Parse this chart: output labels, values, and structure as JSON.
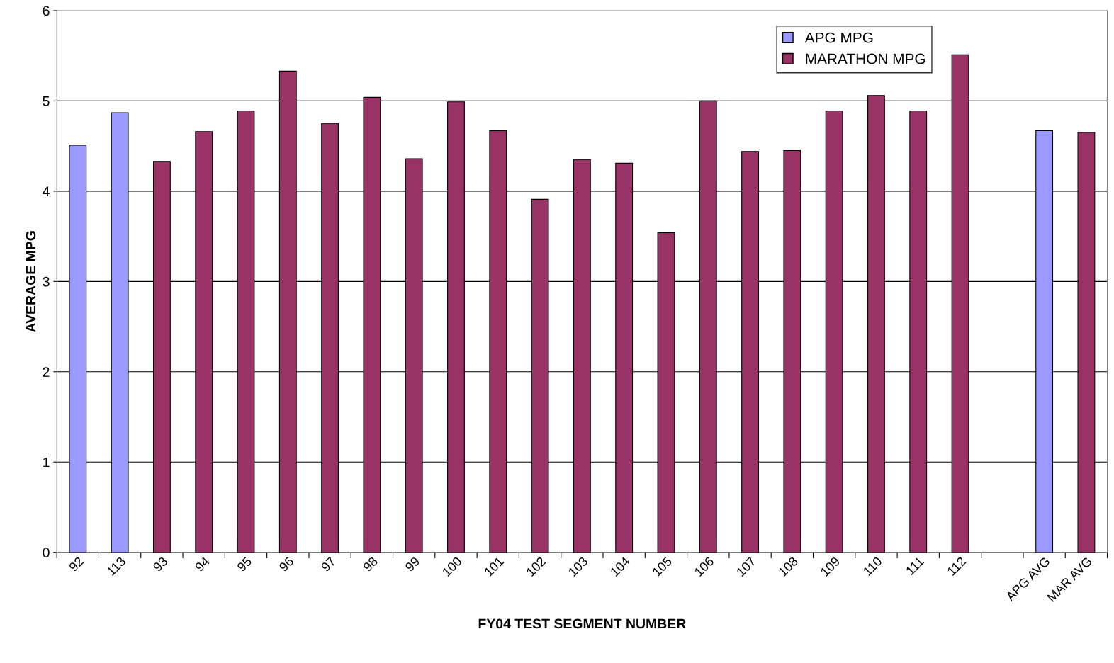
{
  "chart_data": {
    "type": "bar",
    "xlabel": "FY04 TEST SEGMENT NUMBER",
    "ylabel": "AVERAGE MPG",
    "categories": [
      "92",
      "113",
      "93",
      "94",
      "95",
      "96",
      "97",
      "98",
      "99",
      "100",
      "101",
      "102",
      "103",
      "104",
      "105",
      "106",
      "107",
      "108",
      "109",
      "110",
      "111",
      "112",
      null,
      "APG AVG",
      "MAR AVG"
    ],
    "series": [
      {
        "name": "APG MPG",
        "color": "#9999ff",
        "values": [
          4.51,
          4.87,
          null,
          null,
          null,
          null,
          null,
          null,
          null,
          null,
          null,
          null,
          null,
          null,
          null,
          null,
          null,
          null,
          null,
          null,
          null,
          null,
          null,
          4.67,
          null
        ]
      },
      {
        "name": "MARATHON MPG",
        "color": "#993366",
        "values": [
          null,
          null,
          4.33,
          4.66,
          4.89,
          5.33,
          4.75,
          5.04,
          4.36,
          4.99,
          4.67,
          3.91,
          4.35,
          4.31,
          3.54,
          5.0,
          4.44,
          4.45,
          4.89,
          5.06,
          4.89,
          5.51,
          null,
          null,
          4.65
        ]
      }
    ],
    "ylim": [
      0,
      6
    ],
    "yticks": [
      0,
      1,
      2,
      3,
      4,
      5,
      6
    ],
    "grid": "y",
    "legend": "top right"
  }
}
